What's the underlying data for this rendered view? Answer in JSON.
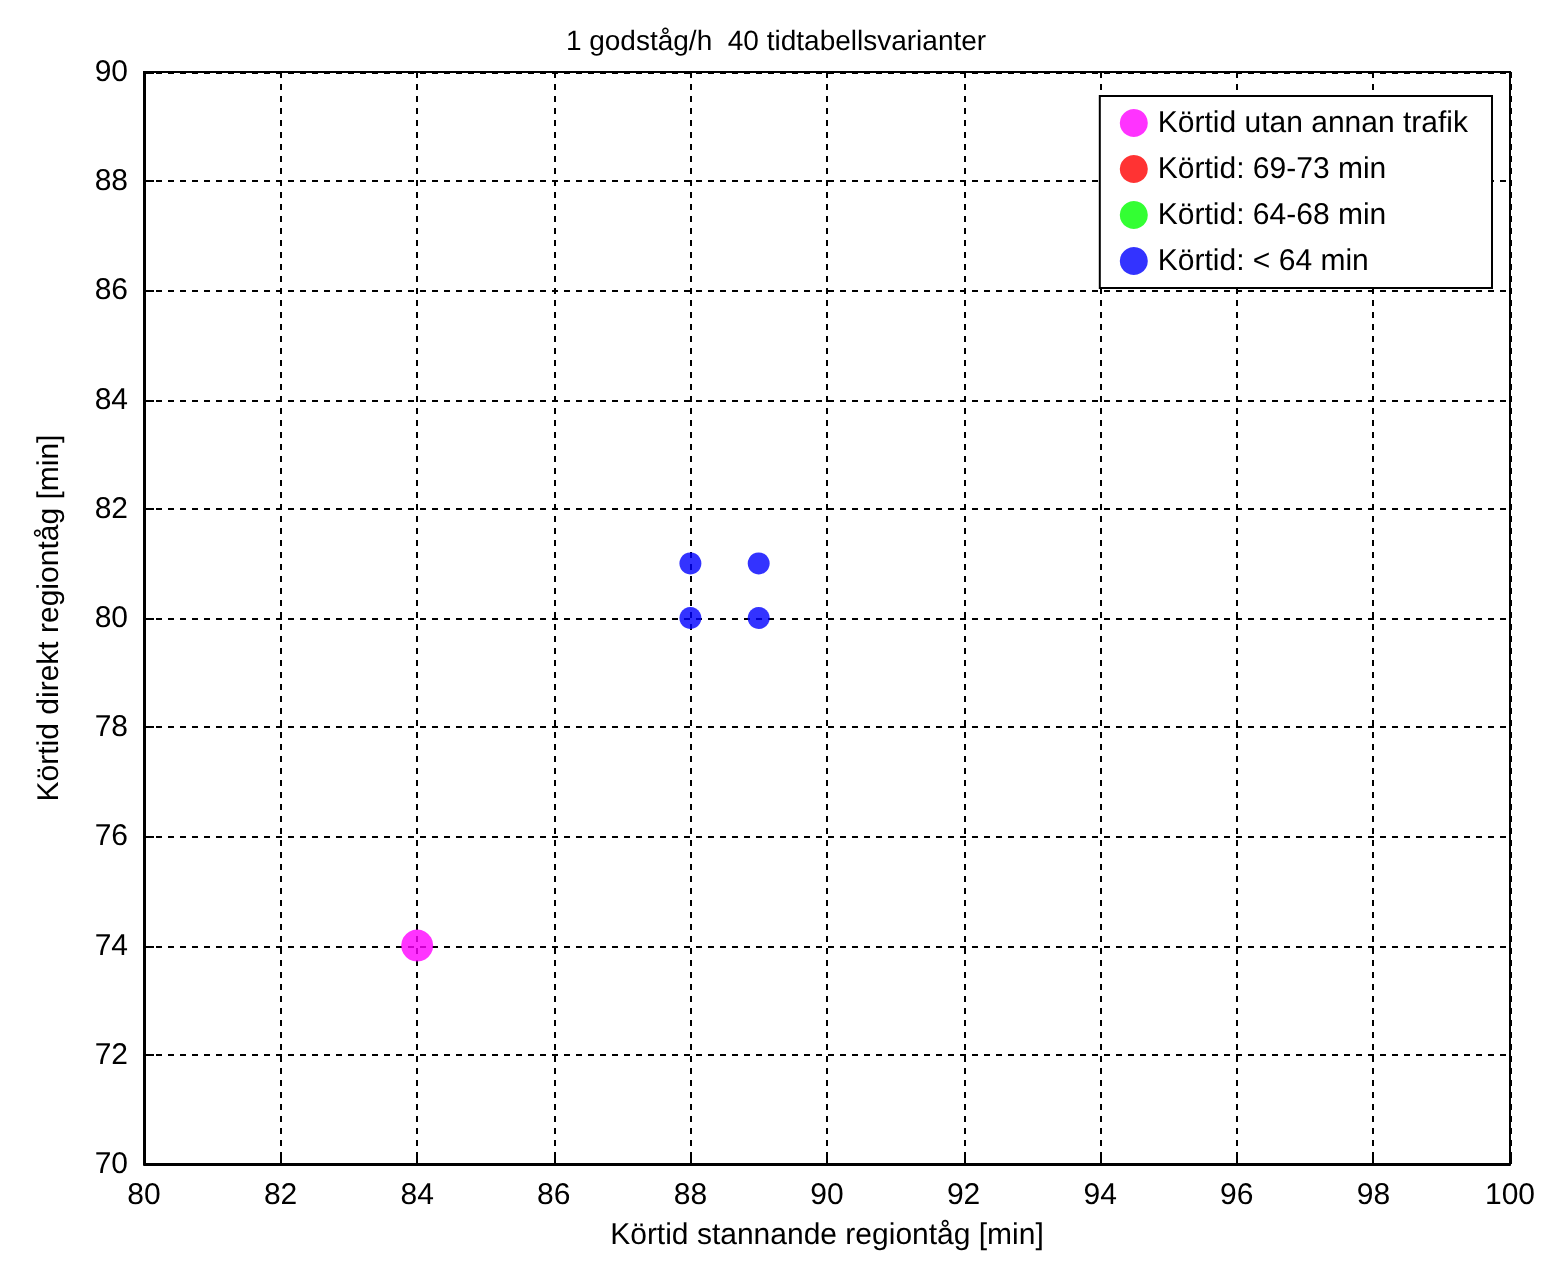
{
  "chart_data": {
    "type": "scatter",
    "title": "1 godståg/h  40 tidtabellsvarianter",
    "xlabel": "Körtid stannande regiontåg [min]",
    "ylabel": "Körtid direkt regiontåg [min]",
    "xlim": [
      80,
      100
    ],
    "xticks": [
      80,
      82,
      84,
      86,
      88,
      90,
      92,
      94,
      96,
      98,
      100
    ],
    "ylim": [
      70,
      90
    ],
    "yticks": [
      70,
      72,
      74,
      76,
      78,
      80,
      82,
      84,
      86,
      88,
      90
    ],
    "grid": true,
    "legend": "top right",
    "marker": "circle",
    "series": [
      {
        "name": "Körtid utan annan trafik",
        "color": "#ff00ff",
        "x": [
          84
        ],
        "values": [
          74
        ]
      },
      {
        "name": "Körtid: 69-73 min",
        "color": "#ff0000"
      },
      {
        "name": "Körtid: 64-68 min",
        "color": "#00ff00"
      },
      {
        "name": "Körtid: < 64 min",
        "color": "#0000ff",
        "x": [
          88,
          88,
          89,
          89
        ],
        "values": [
          80,
          81,
          80,
          81
        ]
      }
    ]
  }
}
